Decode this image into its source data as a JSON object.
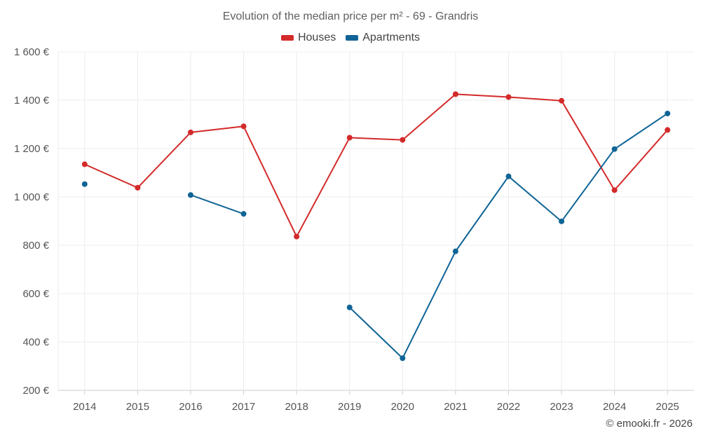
{
  "chart_data": {
    "type": "line",
    "title": "Evolution of the median price per m² - 69 - Grandris",
    "categories": [
      "2014",
      "2015",
      "2016",
      "2017",
      "2018",
      "2019",
      "2020",
      "2021",
      "2022",
      "2023",
      "2024",
      "2025"
    ],
    "yticks": [
      "200 €",
      "400 €",
      "600 €",
      "800 €",
      "1 000 €",
      "1 200 €",
      "1 400 €",
      "1 600 €"
    ],
    "ylim": [
      200,
      1600
    ],
    "grid": true,
    "legend_position": "top-center",
    "series": [
      {
        "name": "Houses",
        "color": "#d42a2a",
        "values": [
          1135,
          1038,
          1267,
          1292,
          836,
          1245,
          1236,
          1425,
          1413,
          1398,
          1028,
          1277
        ]
      },
      {
        "name": "Apartments",
        "color": "#0f6496",
        "values": [
          1053,
          null,
          1008,
          930,
          null,
          543,
          333,
          775,
          1085,
          899,
          1198,
          1345
        ]
      }
    ]
  },
  "credit": "© emooki.fr - 2026"
}
